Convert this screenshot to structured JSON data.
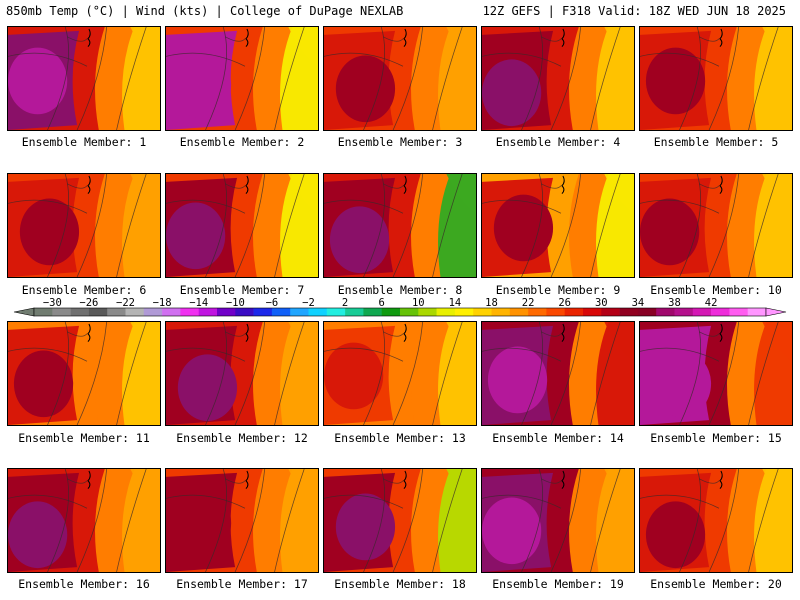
{
  "header": {
    "left_title": "850mb Temp (°C) | Wind (kts) | College of DuPage NEXLAB",
    "right_title": "12Z GEFS | F318 Valid: 18Z WED JUN 18 2025"
  },
  "member_label_prefix": "Ensemble Member: ",
  "members": [
    {
      "label": "Ensemble Member: 1"
    },
    {
      "label": "Ensemble Member: 2"
    },
    {
      "label": "Ensemble Member: 3"
    },
    {
      "label": "Ensemble Member: 4"
    },
    {
      "label": "Ensemble Member: 5"
    },
    {
      "label": "Ensemble Member: 6"
    },
    {
      "label": "Ensemble Member: 7"
    },
    {
      "label": "Ensemble Member: 8"
    },
    {
      "label": "Ensemble Member: 9"
    },
    {
      "label": "Ensemble Member: 10"
    },
    {
      "label": "Ensemble Member: 11"
    },
    {
      "label": "Ensemble Member: 12"
    },
    {
      "label": "Ensemble Member: 13"
    },
    {
      "label": "Ensemble Member: 14"
    },
    {
      "label": "Ensemble Member: 15"
    },
    {
      "label": "Ensemble Member: 16"
    },
    {
      "label": "Ensemble Member: 17"
    },
    {
      "label": "Ensemble Member: 18"
    },
    {
      "label": "Ensemble Member: 19"
    },
    {
      "label": "Ensemble Member: 20"
    }
  ],
  "colorbar": {
    "tick_labels": [
      "−30",
      "−26",
      "−22",
      "−18",
      "−14",
      "−10",
      "−6",
      "−2",
      "2",
      "6",
      "10",
      "14",
      "18",
      "22",
      "26",
      "30",
      "34",
      "38",
      "42"
    ],
    "colors": [
      "#707c70",
      "#8a8a8a",
      "#707070",
      "#5a5a5a",
      "#8a8a8a",
      "#b4b4b4",
      "#b09ad6",
      "#d070f0",
      "#f030f0",
      "#c014e0",
      "#7000c8",
      "#3a0cc4",
      "#1c28ea",
      "#1060f8",
      "#20a6ff",
      "#10d2ff",
      "#22eee0",
      "#18cc96",
      "#10a850",
      "#109a10",
      "#66c208",
      "#aad800",
      "#e8f000",
      "#fff000",
      "#ffd200",
      "#ffb400",
      "#ff9200",
      "#ff6a00",
      "#fa4800",
      "#ea2400",
      "#d80808",
      "#b40016",
      "#900020",
      "#880024",
      "#a0086c",
      "#b4108c",
      "#d418b4",
      "#ee2cda",
      "#ff5cf0",
      "#ff96ff"
    ]
  },
  "colors": {
    "deep_purple": "#8a1068",
    "magenta": "#b4189a",
    "dark_red": "#a00020",
    "red": "#d81808",
    "red_orange": "#ef3a00",
    "orange": "#ff7d00",
    "light_orange": "#ffa000",
    "amber": "#ffc200",
    "yellow": "#f8e800",
    "yellow_green": "#b8d800",
    "green": "#3ca820"
  }
}
